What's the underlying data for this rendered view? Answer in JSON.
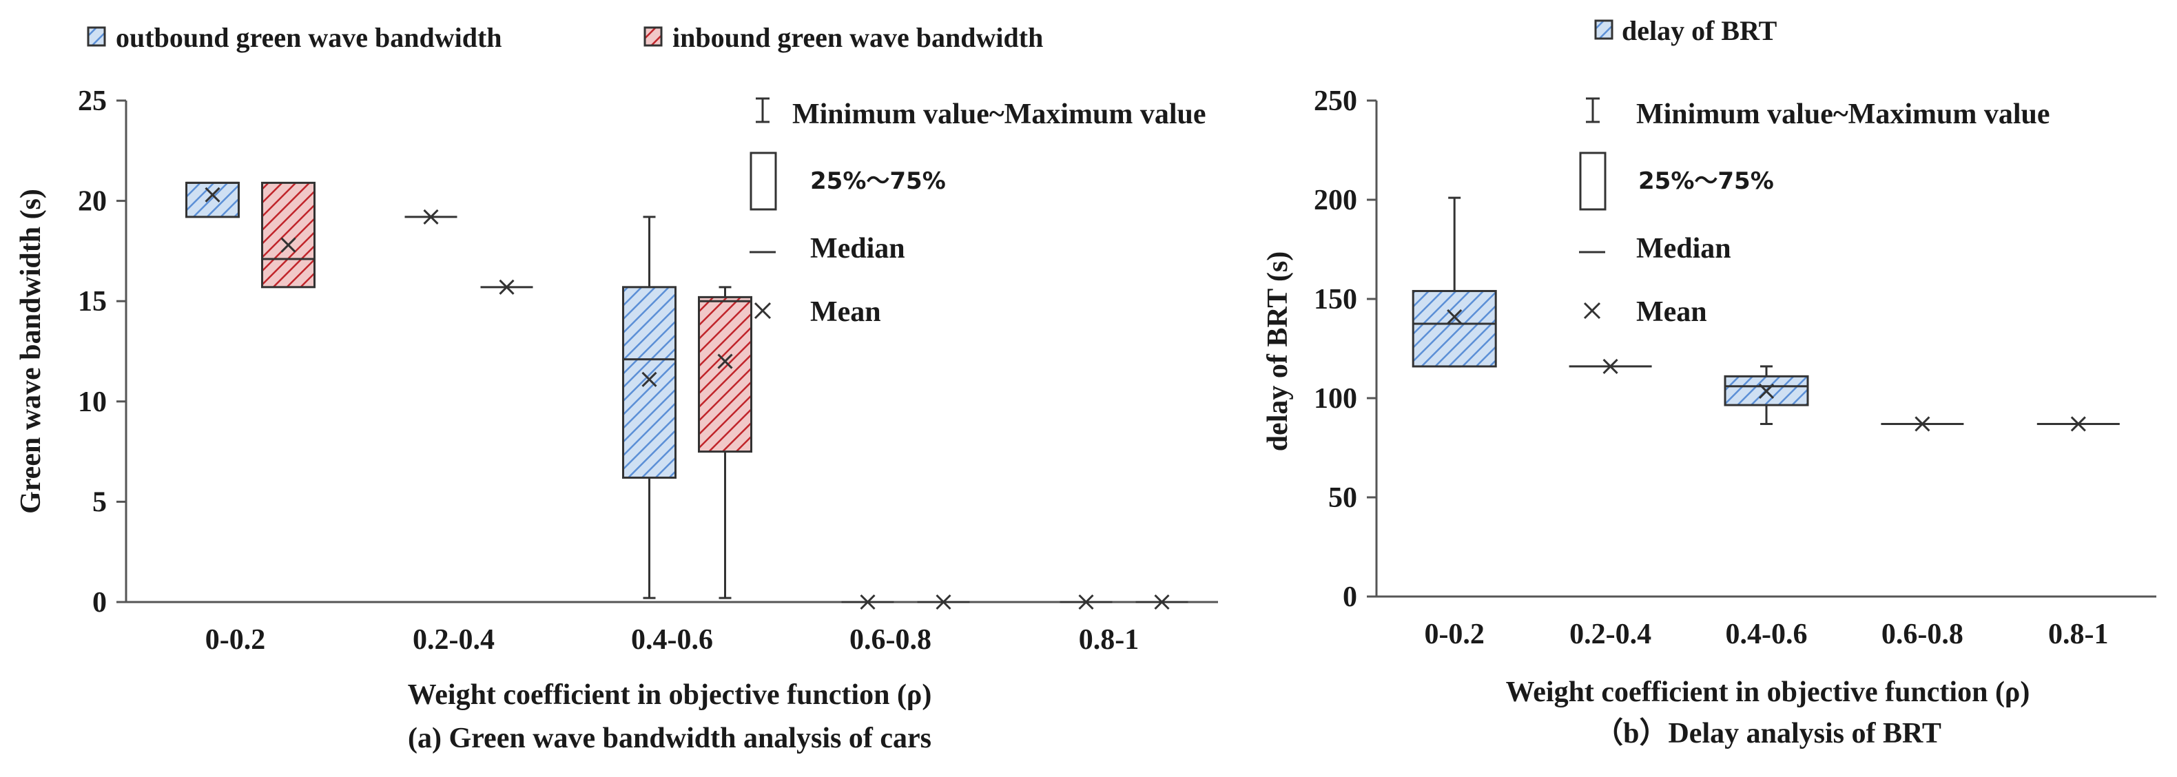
{
  "colors": {
    "blue_fill": "#cfe0f3",
    "blue_hatch": "#5b8fd6",
    "red_fill": "#f1c8c8",
    "red_hatch": "#c0242a",
    "line": "#333333",
    "axis": "#555555"
  },
  "chart_data": [
    {
      "type": "box",
      "panel": "a",
      "caption": "(a) Green wave bandwidth analysis of cars",
      "xlabel": "Weight coefficient in objective function (ρ)",
      "ylabel": "Green wave bandwidth (s)",
      "ylim": [
        0,
        25
      ],
      "yticks": [
        "0",
        "5",
        "10",
        "15",
        "20",
        "25"
      ],
      "categories": [
        "0-0.2",
        "0.2-0.4",
        "0.4-0.6",
        "0.6-0.8",
        "0.8-1"
      ],
      "series": [
        {
          "name": "outbound green wave bandwidth",
          "color": "blue",
          "boxes": [
            {
              "min": 19.2,
              "q1": 19.2,
              "median": 20.9,
              "q3": 20.9,
              "max": 20.9,
              "mean": 20.3
            },
            {
              "min": 19.2,
              "q1": 19.2,
              "median": 19.2,
              "q3": 19.2,
              "max": 19.2,
              "mean": 19.2
            },
            {
              "min": 0.2,
              "q1": 6.2,
              "median": 12.1,
              "q3": 15.7,
              "max": 19.2,
              "mean": 11.1
            },
            {
              "min": 0,
              "q1": 0,
              "median": 0,
              "q3": 0,
              "max": 0,
              "mean": 0
            },
            {
              "min": 0,
              "q1": 0,
              "median": 0,
              "q3": 0,
              "max": 0,
              "mean": 0
            }
          ]
        },
        {
          "name": "inbound green wave bandwidth",
          "color": "red",
          "boxes": [
            {
              "min": 15.7,
              "q1": 15.7,
              "median": 17.1,
              "q3": 20.9,
              "max": 20.9,
              "mean": 17.8
            },
            {
              "min": 15.7,
              "q1": 15.7,
              "median": 15.7,
              "q3": 15.7,
              "max": 15.7,
              "mean": 15.7
            },
            {
              "min": 0.2,
              "q1": 7.5,
              "median": 15.0,
              "q3": 15.2,
              "max": 15.7,
              "mean": 12.0
            },
            {
              "min": 0,
              "q1": 0,
              "median": 0,
              "q3": 0,
              "max": 0,
              "mean": 0
            },
            {
              "min": 0,
              "q1": 0,
              "median": 0,
              "q3": 0,
              "max": 0,
              "mean": 0
            }
          ]
        }
      ],
      "key": {
        "whisker": "Minimum value~Maximum value",
        "box": "25%～75%",
        "median": "Median",
        "mean": "Mean"
      }
    },
    {
      "type": "box",
      "panel": "b",
      "caption": "（b）Delay analysis of BRT",
      "xlabel": "Weight coefficient in objective function (ρ)",
      "ylabel": "delay of BRT (s)",
      "ylim": [
        0,
        250
      ],
      "yticks": [
        "0",
        "50",
        "100",
        "150",
        "200",
        "250"
      ],
      "categories": [
        "0-0.2",
        "0.2-0.4",
        "0.4-0.6",
        "0.6-0.8",
        "0.8-1"
      ],
      "series": [
        {
          "name": "delay of BRT",
          "color": "blue",
          "boxes": [
            {
              "min": 116,
              "q1": 116,
              "median": 137.5,
              "q3": 154,
              "max": 201,
              "mean": 141
            },
            {
              "min": 116,
              "q1": 116,
              "median": 116,
              "q3": 116,
              "max": 116,
              "mean": 116
            },
            {
              "min": 87,
              "q1": 96.5,
              "median": 106,
              "q3": 111,
              "max": 116,
              "mean": 103.5
            },
            {
              "min": 87,
              "q1": 87,
              "median": 87,
              "q3": 87,
              "max": 87,
              "mean": 87
            },
            {
              "min": 87,
              "q1": 87,
              "median": 87,
              "q3": 87,
              "max": 87,
              "mean": 87
            }
          ]
        }
      ],
      "key": {
        "whisker": "Minimum value~Maximum value",
        "box": "25%～75%",
        "median": "Median",
        "mean": "Mean"
      }
    }
  ]
}
